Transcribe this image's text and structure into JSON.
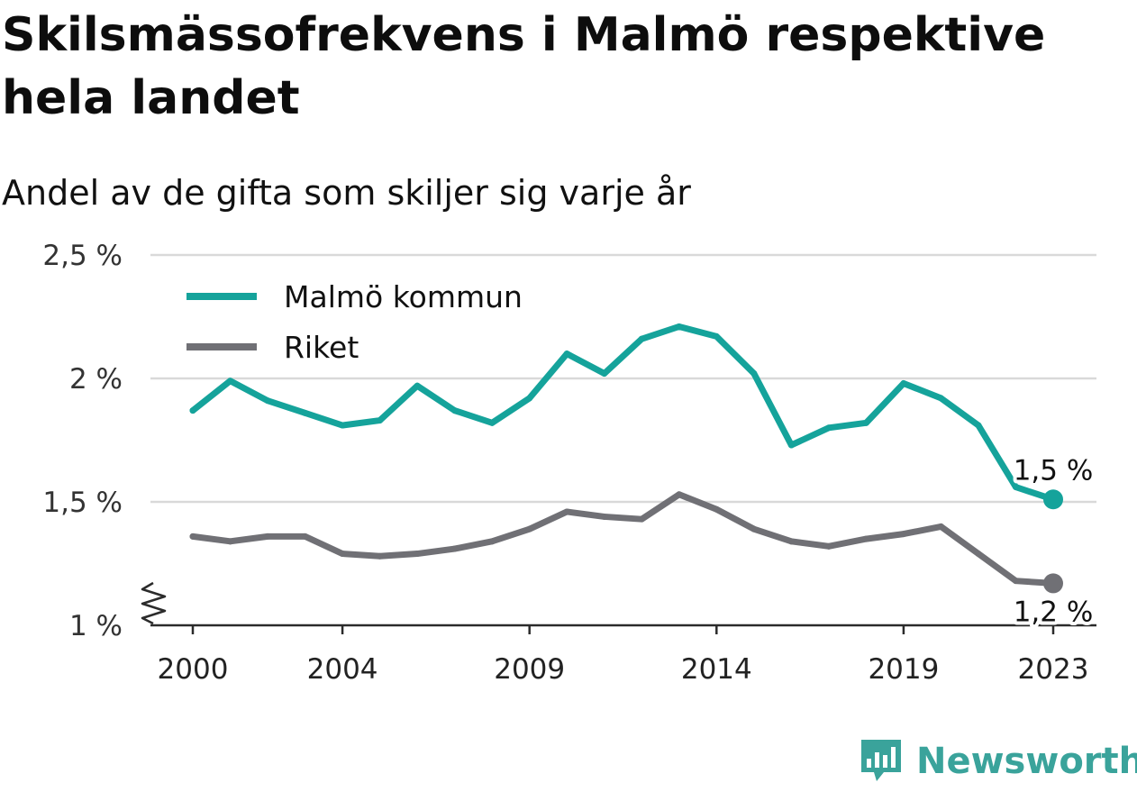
{
  "title": "Skilsmässofrekvens i Malmö respektive hela landet",
  "subtitle": "Andel av de gifta som skiljer sig varje år",
  "brand": "Newsworthy",
  "chart_data": {
    "type": "line",
    "x": [
      2000,
      2001,
      2002,
      2003,
      2004,
      2005,
      2006,
      2007,
      2008,
      2009,
      2010,
      2011,
      2012,
      2013,
      2014,
      2015,
      2016,
      2017,
      2018,
      2019,
      2020,
      2021,
      2022,
      2023
    ],
    "series": [
      {
        "name": "Malmö kommun",
        "color": "#15a39b",
        "values": [
          1.87,
          1.99,
          1.91,
          1.86,
          1.81,
          1.83,
          1.97,
          1.87,
          1.82,
          1.92,
          2.1,
          2.02,
          2.16,
          2.21,
          2.17,
          2.02,
          1.73,
          1.8,
          1.82,
          1.98,
          1.92,
          1.81,
          1.56,
          1.51
        ],
        "end_label": "1,5 %"
      },
      {
        "name": "Riket",
        "color": "#707075",
        "values": [
          1.36,
          1.34,
          1.36,
          1.36,
          1.29,
          1.28,
          1.29,
          1.31,
          1.34,
          1.39,
          1.46,
          1.44,
          1.43,
          1.53,
          1.47,
          1.39,
          1.34,
          1.32,
          1.35,
          1.37,
          1.4,
          1.29,
          1.18,
          1.17
        ],
        "end_label": "1,2 %"
      }
    ],
    "x_ticks": [
      2000,
      2004,
      2009,
      2014,
      2019,
      2023
    ],
    "y_ticks": [
      1,
      1.5,
      2,
      2.5
    ],
    "y_tick_labels": [
      "1 %",
      "1,5 %",
      "2 %",
      "2,5 %"
    ],
    "ylim": [
      1,
      2.5
    ],
    "xlim": [
      2000,
      2023
    ],
    "grid": true,
    "axis_break": true,
    "legend_position": "top-left",
    "xlabel": "",
    "ylabel": ""
  }
}
